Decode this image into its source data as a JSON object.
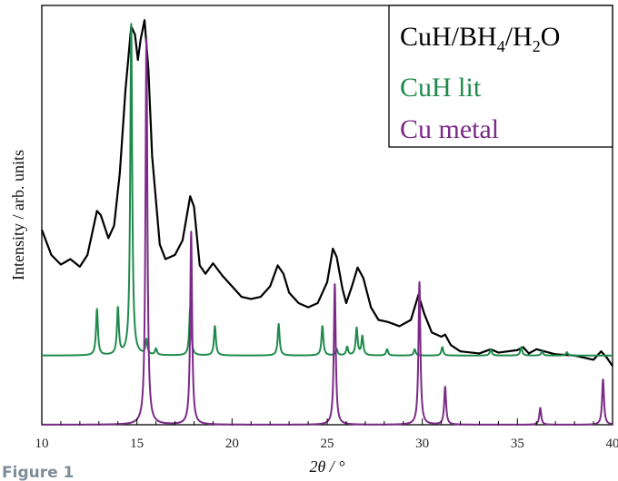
{
  "figure_label": "Figure 1",
  "chart_data": {
    "type": "line",
    "xlabel": "2θ / °",
    "ylabel": "Intensity / arb. units",
    "xlim": [
      10,
      40
    ],
    "x_ticks": [
      "10",
      "15",
      "20",
      "25",
      "30",
      "35",
      "40"
    ],
    "ylim": [
      0,
      1
    ],
    "grid": false,
    "legend_position": "top-right",
    "legend": {
      "line1_parts": [
        "CuH/BH",
        "4",
        "/H",
        "2",
        "O"
      ],
      "line2": "CuH lit",
      "line3": "Cu metal"
    },
    "series": [
      {
        "name": "CuH/BH4/H2O",
        "color": "#000000",
        "points": [
          [
            10.0,
            0.465
          ],
          [
            10.5,
            0.405
          ],
          [
            11.0,
            0.382
          ],
          [
            11.5,
            0.395
          ],
          [
            12.0,
            0.377
          ],
          [
            12.4,
            0.405
          ],
          [
            12.9,
            0.51
          ],
          [
            13.1,
            0.5
          ],
          [
            13.5,
            0.445
          ],
          [
            13.8,
            0.475
          ],
          [
            14.1,
            0.6
          ],
          [
            14.4,
            0.8
          ],
          [
            14.7,
            0.95
          ],
          [
            14.9,
            0.93
          ],
          [
            15.05,
            0.87
          ],
          [
            15.2,
            0.92
          ],
          [
            15.4,
            0.965
          ],
          [
            15.6,
            0.85
          ],
          [
            15.8,
            0.64
          ],
          [
            16.2,
            0.43
          ],
          [
            16.5,
            0.395
          ],
          [
            17.0,
            0.405
          ],
          [
            17.4,
            0.44
          ],
          [
            17.8,
            0.545
          ],
          [
            18.0,
            0.52
          ],
          [
            18.3,
            0.38
          ],
          [
            18.6,
            0.36
          ],
          [
            19.0,
            0.385
          ],
          [
            19.5,
            0.355
          ],
          [
            20.0,
            0.33
          ],
          [
            20.5,
            0.305
          ],
          [
            21.0,
            0.3
          ],
          [
            21.5,
            0.305
          ],
          [
            22.0,
            0.33
          ],
          [
            22.4,
            0.38
          ],
          [
            22.7,
            0.36
          ],
          [
            23.0,
            0.315
          ],
          [
            23.5,
            0.29
          ],
          [
            24.0,
            0.28
          ],
          [
            24.5,
            0.29
          ],
          [
            25.0,
            0.34
          ],
          [
            25.3,
            0.42
          ],
          [
            25.5,
            0.4
          ],
          [
            25.8,
            0.325
          ],
          [
            26.0,
            0.29
          ],
          [
            26.3,
            0.33
          ],
          [
            26.6,
            0.375
          ],
          [
            26.9,
            0.35
          ],
          [
            27.3,
            0.28
          ],
          [
            27.7,
            0.25
          ],
          [
            28.2,
            0.245
          ],
          [
            28.8,
            0.235
          ],
          [
            29.4,
            0.25
          ],
          [
            29.8,
            0.31
          ],
          [
            30.1,
            0.265
          ],
          [
            30.5,
            0.22
          ],
          [
            31.0,
            0.21
          ],
          [
            31.2,
            0.215
          ],
          [
            31.5,
            0.19
          ],
          [
            32.0,
            0.175
          ],
          [
            33.0,
            0.17
          ],
          [
            33.6,
            0.18
          ],
          [
            34.0,
            0.172
          ],
          [
            35.0,
            0.178
          ],
          [
            35.3,
            0.185
          ],
          [
            35.6,
            0.17
          ],
          [
            36.0,
            0.18
          ],
          [
            37.0,
            0.168
          ],
          [
            38.0,
            0.165
          ],
          [
            39.0,
            0.155
          ],
          [
            39.4,
            0.175
          ],
          [
            39.7,
            0.16
          ],
          [
            40.0,
            0.14
          ]
        ]
      },
      {
        "name": "CuH lit",
        "color": "#1f8a4c",
        "baseline": 0.165,
        "peaks": [
          [
            12.9,
            0.275
          ],
          [
            14.0,
            0.275
          ],
          [
            14.7,
            0.955
          ],
          [
            15.5,
            0.2
          ],
          [
            16.0,
            0.18
          ],
          [
            17.8,
            0.28
          ],
          [
            19.1,
            0.235
          ],
          [
            22.45,
            0.24
          ],
          [
            24.75,
            0.235
          ],
          [
            25.5,
            0.18
          ],
          [
            26.05,
            0.185
          ],
          [
            26.55,
            0.23
          ],
          [
            26.85,
            0.21
          ],
          [
            28.15,
            0.18
          ],
          [
            29.6,
            0.18
          ],
          [
            31.05,
            0.185
          ],
          [
            33.6,
            0.18
          ],
          [
            35.2,
            0.185
          ],
          [
            36.3,
            0.175
          ],
          [
            37.6,
            0.173
          ]
        ]
      },
      {
        "name": "Cu metal",
        "color": "#7b2a87",
        "baseline": 0.0,
        "peaks": [
          [
            15.5,
            0.92
          ],
          [
            17.85,
            0.46
          ],
          [
            25.4,
            0.335
          ],
          [
            29.85,
            0.34
          ],
          [
            31.2,
            0.09
          ],
          [
            36.2,
            0.04
          ],
          [
            39.5,
            0.108
          ]
        ]
      }
    ]
  }
}
